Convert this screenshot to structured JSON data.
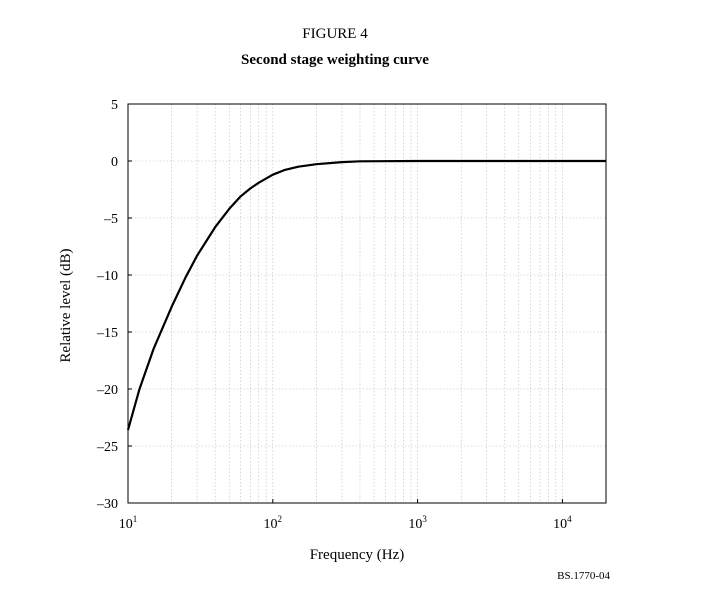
{
  "figure": {
    "label": "FIGURE 4",
    "title": "Second stage weighting curve",
    "id": "BS.1770-04"
  },
  "chart_data": {
    "type": "line",
    "title": "Second stage weighting curve",
    "xlabel": "Frequency (Hz)",
    "ylabel": "Relative level (dB)",
    "xscale": "log",
    "xlim": [
      10,
      20000
    ],
    "ylim": [
      -30,
      5
    ],
    "yticks": [
      5,
      0,
      -5,
      -10,
      -15,
      -20,
      -25,
      -30
    ],
    "ytick_labels": [
      "5",
      "0",
      "–5",
      "–10",
      "–15",
      "–20",
      "–25",
      "–30"
    ],
    "xticks": [
      10,
      100,
      1000,
      10000
    ],
    "xtick_labels": [
      {
        "base": "10",
        "exp": "1"
      },
      {
        "base": "10",
        "exp": "2"
      },
      {
        "base": "10",
        "exp": "3"
      },
      {
        "base": "10",
        "exp": "4"
      }
    ],
    "grid": true,
    "series": [
      {
        "color": "#000000",
        "x": [
          10,
          12,
          15,
          20,
          25,
          30,
          40,
          50,
          60,
          70,
          80,
          100,
          120,
          150,
          200,
          300,
          400,
          1000,
          10000,
          20000
        ],
        "y": [
          -23.6,
          -20.0,
          -16.5,
          -12.8,
          -10.2,
          -8.3,
          -5.8,
          -4.2,
          -3.1,
          -2.4,
          -1.9,
          -1.2,
          -0.8,
          -0.5,
          -0.28,
          -0.1,
          -0.03,
          0,
          0,
          0
        ]
      }
    ]
  }
}
